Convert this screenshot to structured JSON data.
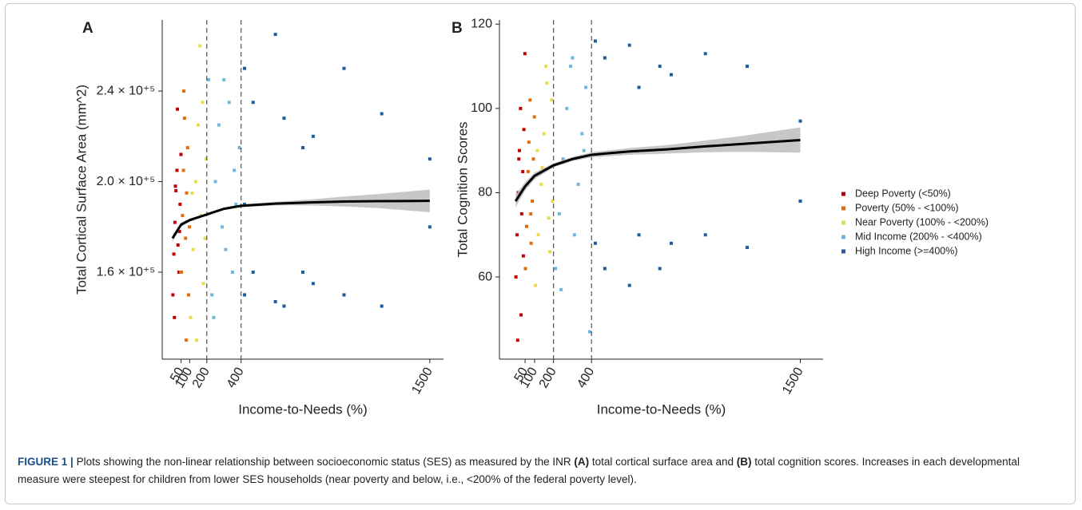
{
  "chart_data": [
    {
      "type": "scatter",
      "panel": "A",
      "x_label": "Income-to-Needs (%)",
      "y_label": "Total Cortical Surface Area (mm^2)",
      "xlim": [
        -60,
        1580
      ],
      "ylim": [
        121600,
        271400
      ],
      "xticks": [
        50,
        100,
        200,
        400,
        1500
      ],
      "yticks": [
        {
          "value": 160000,
          "label": "1.6 × 10⁺⁵"
        },
        {
          "value": 200000,
          "label": "2.0 × 10⁺⁵"
        },
        {
          "value": 240000,
          "label": "2.4 × 10⁺⁵"
        }
      ],
      "vlines": [
        200,
        400
      ],
      "fit_color": "#000000",
      "band_color": "#bdbdbd",
      "series": [
        {
          "color": "#c00000",
          "x": [
            2,
            8,
            14,
            20,
            26,
            32,
            38,
            44,
            49,
            11,
            29,
            41,
            17
          ],
          "values": [
            150000,
            168000,
            182000,
            196000,
            205000,
            172000,
            160000,
            190000,
            212000,
            140000,
            232000,
            178000,
            198000
          ]
        },
        {
          "color": "#e36c0a",
          "x": [
            52,
            58,
            64,
            70,
            76,
            82,
            88,
            94,
            99,
            66,
            80
          ],
          "values": [
            160000,
            185000,
            205000,
            228000,
            175000,
            195000,
            215000,
            150000,
            180000,
            240000,
            130000
          ]
        },
        {
          "color": "#e8dc4a",
          "x": [
            105,
            120,
            135,
            150,
            165,
            180,
            195,
            115,
            160,
            190,
            140,
            175
          ],
          "values": [
            140000,
            170000,
            200000,
            225000,
            185000,
            155000,
            210000,
            195000,
            260000,
            175000,
            130000,
            235000
          ]
        },
        {
          "color": "#6fb6dc",
          "x": [
            210,
            230,
            250,
            270,
            290,
            310,
            330,
            350,
            370,
            390,
            240,
            300,
            360
          ],
          "values": [
            245000,
            150000,
            200000,
            225000,
            180000,
            170000,
            235000,
            160000,
            190000,
            215000,
            140000,
            245000,
            205000
          ]
        },
        {
          "color": "#1f5c9e",
          "x": [
            420,
            420,
            420,
            470,
            470,
            600,
            600,
            650,
            650,
            760,
            760,
            820,
            820,
            1000,
            1000,
            1220,
            1220,
            1500,
            1500
          ],
          "values": [
            250000,
            190000,
            150000,
            235000,
            160000,
            265000,
            147000,
            228000,
            145000,
            215000,
            160000,
            220000,
            155000,
            250000,
            150000,
            230000,
            145000,
            210000,
            180000
          ]
        }
      ],
      "fit": {
        "x": [
          0,
          50,
          100,
          200,
          300,
          400,
          600,
          800,
          1000,
          1200,
          1500
        ],
        "y": [
          175000,
          181000,
          183000,
          185500,
          188000,
          189300,
          190300,
          190800,
          191200,
          191400,
          191500
        ],
        "lower": [
          173500,
          180000,
          182300,
          185000,
          187500,
          188700,
          189500,
          189500,
          189000,
          188300,
          186500
        ],
        "upper": [
          176500,
          182000,
          183700,
          186000,
          188500,
          189900,
          191100,
          192100,
          193400,
          194500,
          196500
        ]
      }
    },
    {
      "type": "scatter",
      "panel": "B",
      "x_label": "Income-to-Needs (%)",
      "y_label": "Total Cognition Scores",
      "xlim": [
        -85,
        1620
      ],
      "ylim": [
        40.5,
        121
      ],
      "xticks": [
        50,
        100,
        200,
        400,
        1500
      ],
      "yticks": [
        60,
        80,
        100,
        120
      ],
      "vlines": [
        200,
        400
      ],
      "fit_color": "#000000",
      "band_color": "#bdbdbd",
      "series": [
        {
          "name": "Deep Poverty (<50%)",
          "color": "#c00000",
          "x": [
            2,
            8,
            14,
            20,
            26,
            32,
            38,
            44,
            49,
            11,
            29,
            41,
            17
          ],
          "values": [
            60,
            70,
            80,
            90,
            100,
            75,
            85,
            95,
            113,
            45,
            51,
            65,
            88
          ]
        },
        {
          "name": "Poverty (50% - <100%)",
          "color": "#e36c0a",
          "x": [
            52,
            58,
            64,
            70,
            76,
            82,
            88,
            94,
            99,
            66,
            80
          ],
          "values": [
            62,
            72,
            82,
            92,
            102,
            68,
            78,
            88,
            98,
            85,
            75
          ]
        },
        {
          "name": "Near Poverty (100% - <200%)",
          "color": "#e8dc4a",
          "x": [
            105,
            120,
            135,
            150,
            165,
            180,
            195,
            115,
            160,
            190,
            140,
            175
          ],
          "values": [
            58,
            70,
            82,
            94,
            106,
            66,
            78,
            90,
            110,
            102,
            86,
            74
          ]
        },
        {
          "name": "Mid Income (200% - <400%)",
          "color": "#6fb6dc",
          "x": [
            210,
            230,
            250,
            270,
            290,
            310,
            330,
            350,
            370,
            390,
            240,
            300,
            360
          ],
          "values": [
            62,
            75,
            88,
            100,
            110,
            70,
            82,
            94,
            105,
            47,
            57,
            112,
            90
          ]
        },
        {
          "name": "High Income (>=400%)",
          "color": "#1f5c9e",
          "x": [
            420,
            420,
            470,
            470,
            600,
            600,
            650,
            650,
            760,
            760,
            820,
            820,
            1000,
            1000,
            1220,
            1220,
            1500,
            1500
          ],
          "values": [
            116,
            68,
            112,
            62,
            115,
            58,
            105,
            70,
            110,
            62,
            108,
            68,
            113,
            70,
            110,
            67,
            97,
            78
          ]
        }
      ],
      "fit": {
        "x": [
          0,
          50,
          100,
          200,
          300,
          400,
          600,
          800,
          1000,
          1200,
          1500
        ],
        "y": [
          78,
          81.5,
          84,
          86.5,
          88,
          89,
          89.8,
          90.3,
          91,
          91.6,
          92.5
        ],
        "lower": [
          76.5,
          80.5,
          83.2,
          86,
          87.5,
          88.4,
          89,
          89.3,
          89.6,
          89.7,
          89.5
        ],
        "upper": [
          79.5,
          82.5,
          84.8,
          87,
          88.5,
          89.6,
          90.6,
          91.3,
          92.4,
          93.5,
          95.5
        ]
      }
    }
  ],
  "caption": {
    "label": "FIGURE 1 |",
    "parts": [
      "Plots showing the non-linear relationship between socioeconomic status (SES) as measured by the INR ",
      "(A)",
      " total cortical surface area and ",
      "(B)",
      " total cognition scores. Increases in each developmental measure were steepest for children from lower SES households (near poverty and below, i.e., <200% of the federal poverty level)."
    ]
  }
}
